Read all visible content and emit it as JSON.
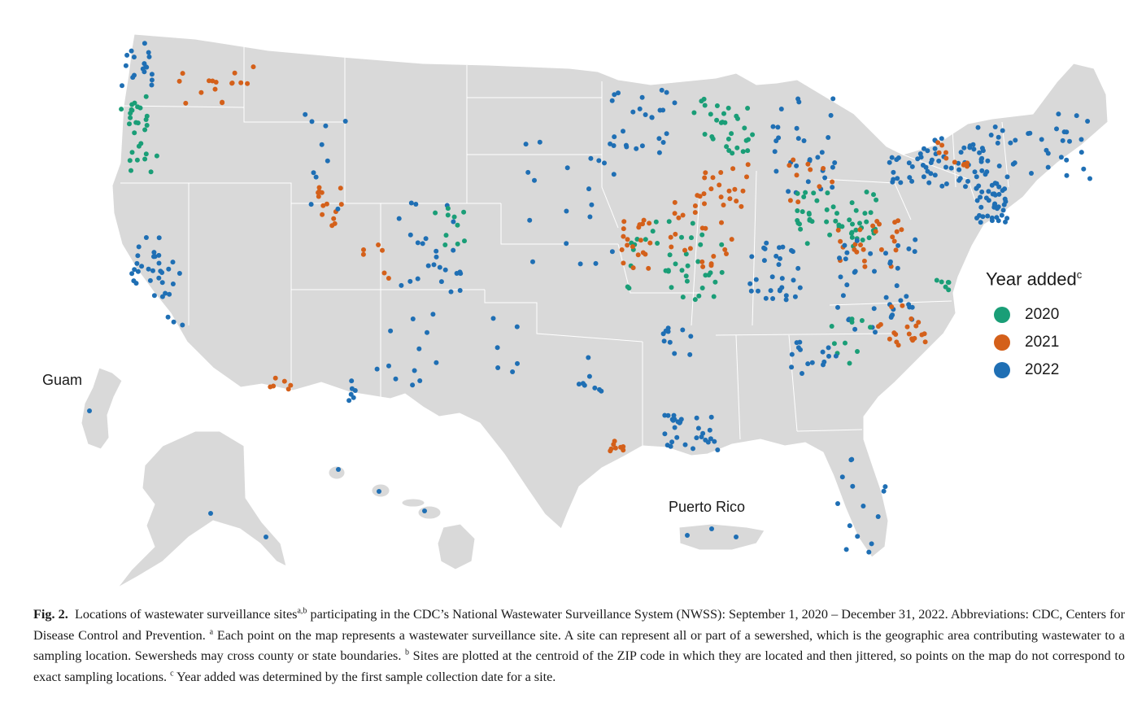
{
  "map": {
    "region_labels": {
      "guam": "Guam",
      "puerto_rico": "Puerto Rico"
    },
    "legend": {
      "title": "Year added",
      "title_superscript": "c",
      "items": [
        {
          "label": "2020",
          "color": "#1a9e77"
        },
        {
          "label": "2021",
          "color": "#d4601a"
        },
        {
          "label": "2022",
          "color": "#1f6fb4"
        }
      ]
    },
    "land_color": "#d9d9d9",
    "border_color": "#ffffff"
  },
  "caption": {
    "fig_label": "Fig. 2.",
    "part1": "Locations of wastewater surveillance sites",
    "sup_ab": "a,b",
    "part2": " participating in the CDC’s National Wastewater Surveillance System (NWSS): September 1, 2020 – December 31, 2022. Abbreviations: CDC, Centers for Disease Control and Prevention. ",
    "sup_a": "a",
    "part3": " Each point on the map represents a wastewater surveillance site. A site can represent all or part of a sewershed, which is the geographic area contributing wastewater to a sampling location. Sewersheds may cross county or state boundaries. ",
    "sup_b": "b",
    "part4": " Sites are plotted at the centroid of the ZIP code in which they are located and then jittered, so points on the map do not correspond to exact sampling locations. ",
    "sup_c": "c",
    "part5": " Year added was determined by the first sample collection date for a site."
  }
}
